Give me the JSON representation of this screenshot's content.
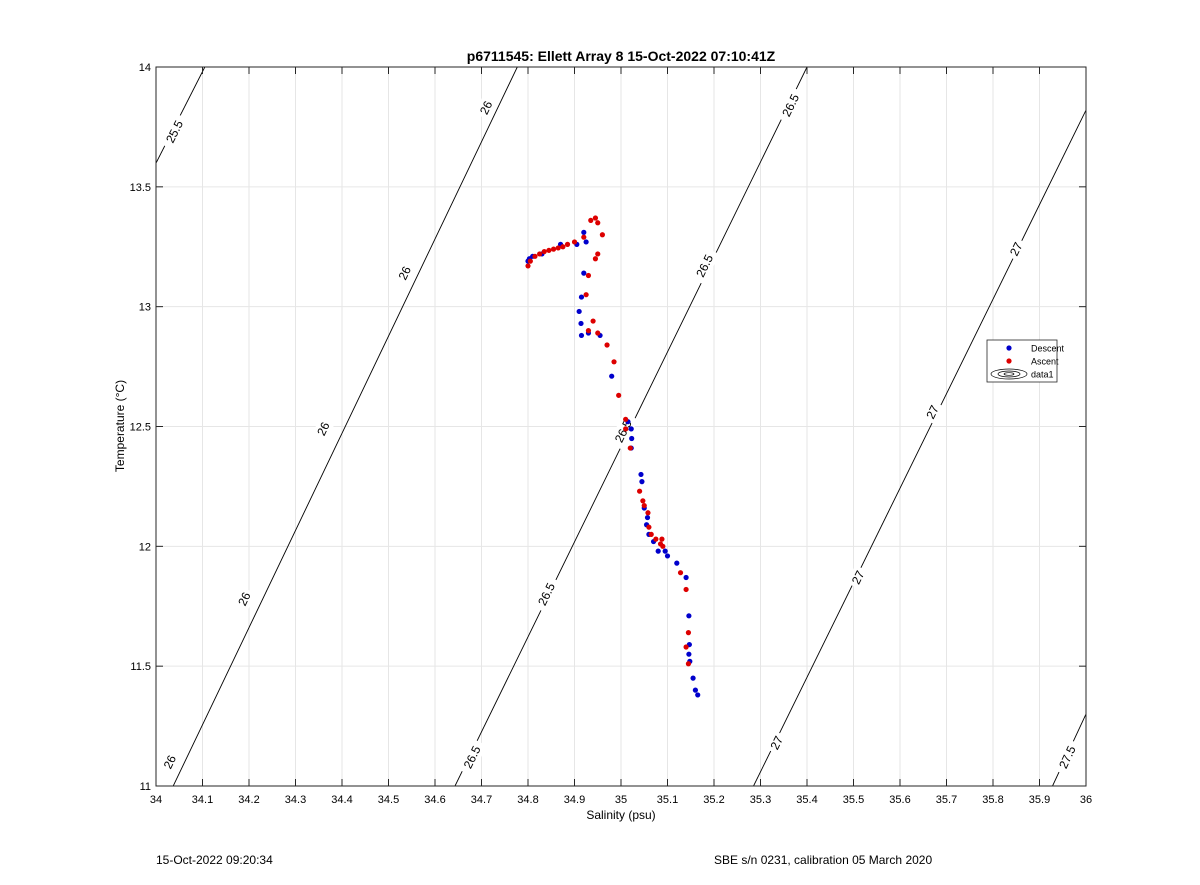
{
  "chart_data": {
    "type": "scatter",
    "title": "p6711545: Ellett Array 8 15-Oct-2022 07:10:41Z",
    "xlabel": "Salinity (psu)",
    "ylabel": "Temperature (°C)",
    "xlim": [
      34,
      36
    ],
    "ylim": [
      11,
      14
    ],
    "xticks": [
      34,
      34.1,
      34.2,
      34.3,
      34.4,
      34.5,
      34.6,
      34.7,
      34.8,
      34.9,
      35,
      35.1,
      35.2,
      35.3,
      35.4,
      35.5,
      35.6,
      35.7,
      35.8,
      35.9,
      36
    ],
    "xtick_labels": [
      "34",
      "34.1",
      "34.2",
      "34.3",
      "34.4",
      "34.5",
      "34.6",
      "34.7",
      "34.8",
      "34.9",
      "35",
      "35.1",
      "35.2",
      "35.3",
      "35.4",
      "35.5",
      "35.6",
      "35.7",
      "35.8",
      "35.9",
      "36"
    ],
    "yticks": [
      11,
      11.5,
      12,
      12.5,
      13,
      13.5,
      14
    ],
    "ytick_labels": [
      "11",
      "11.5",
      "12",
      "12.5",
      "13",
      "13.5",
      "14"
    ],
    "grid": true,
    "legend_position": "right",
    "legend": [
      {
        "label": "Descent",
        "type": "marker",
        "color": "#0000cc"
      },
      {
        "label": "Ascent",
        "type": "marker",
        "color": "#dd0000"
      },
      {
        "label": "data1",
        "type": "contour"
      }
    ],
    "series": [
      {
        "name": "Descent",
        "color": "#0000cc",
        "points": [
          [
            35.165,
            11.38
          ],
          [
            35.16,
            11.4
          ],
          [
            35.155,
            11.45
          ],
          [
            35.148,
            11.52
          ],
          [
            35.146,
            11.55
          ],
          [
            35.147,
            11.59
          ],
          [
            35.146,
            11.71
          ],
          [
            35.14,
            11.87
          ],
          [
            35.12,
            11.93
          ],
          [
            35.1,
            11.96
          ],
          [
            35.095,
            11.98
          ],
          [
            35.08,
            11.98
          ],
          [
            35.07,
            12.02
          ],
          [
            35.06,
            12.05
          ],
          [
            35.055,
            12.09
          ],
          [
            35.057,
            12.12
          ],
          [
            35.05,
            12.16
          ],
          [
            35.045,
            12.27
          ],
          [
            35.043,
            12.3
          ],
          [
            35.022,
            12.41
          ],
          [
            35.023,
            12.45
          ],
          [
            35.022,
            12.49
          ],
          [
            35.015,
            12.52
          ],
          [
            34.98,
            12.71
          ],
          [
            34.955,
            12.88
          ],
          [
            34.93,
            12.89
          ],
          [
            34.915,
            12.88
          ],
          [
            34.914,
            12.93
          ],
          [
            34.91,
            12.98
          ],
          [
            34.915,
            13.04
          ],
          [
            34.92,
            13.14
          ],
          [
            34.905,
            13.26
          ],
          [
            34.925,
            13.27
          ],
          [
            34.92,
            13.31
          ],
          [
            34.87,
            13.26
          ],
          [
            34.83,
            13.22
          ],
          [
            34.81,
            13.21
          ],
          [
            34.8,
            13.19
          ],
          [
            34.803,
            13.2
          ]
        ]
      },
      {
        "name": "Ascent",
        "color": "#dd0000",
        "points": [
          [
            35.145,
            11.51
          ],
          [
            35.14,
            11.58
          ],
          [
            35.145,
            11.64
          ],
          [
            35.14,
            11.82
          ],
          [
            35.128,
            11.89
          ],
          [
            35.09,
            12.0
          ],
          [
            35.088,
            12.03
          ],
          [
            35.085,
            12.01
          ],
          [
            35.075,
            12.03
          ],
          [
            35.065,
            12.05
          ],
          [
            35.06,
            12.08
          ],
          [
            35.058,
            12.14
          ],
          [
            35.05,
            12.17
          ],
          [
            35.047,
            12.19
          ],
          [
            35.04,
            12.23
          ],
          [
            35.02,
            12.41
          ],
          [
            35.01,
            12.49
          ],
          [
            35.01,
            12.53
          ],
          [
            34.995,
            12.63
          ],
          [
            34.985,
            12.77
          ],
          [
            34.97,
            12.84
          ],
          [
            34.95,
            12.89
          ],
          [
            34.93,
            12.9
          ],
          [
            34.94,
            12.94
          ],
          [
            34.925,
            13.05
          ],
          [
            34.93,
            13.13
          ],
          [
            34.945,
            13.2
          ],
          [
            34.95,
            13.22
          ],
          [
            34.96,
            13.3
          ],
          [
            34.95,
            13.35
          ],
          [
            34.945,
            13.37
          ],
          [
            34.935,
            13.36
          ],
          [
            34.92,
            13.29
          ],
          [
            34.9,
            13.27
          ],
          [
            34.885,
            13.26
          ],
          [
            34.875,
            13.25
          ],
          [
            34.865,
            13.245
          ],
          [
            34.855,
            13.24
          ],
          [
            34.845,
            13.235
          ],
          [
            34.835,
            13.23
          ],
          [
            34.825,
            13.22
          ],
          [
            34.815,
            13.21
          ],
          [
            34.805,
            13.19
          ],
          [
            34.8,
            13.17
          ]
        ]
      }
    ],
    "contours": [
      {
        "label": "25.5",
        "points": [
          [
            33.995,
            13.58
          ],
          [
            34.105,
            14.0
          ]
        ],
        "labels_at": [
          [
            34.04,
            13.73
          ]
        ]
      },
      {
        "label": "26",
        "points": [
          [
            34.0,
            10.85
          ],
          [
            34.777,
            14.0
          ]
        ],
        "labels_at": [
          [
            34.03,
            11.1
          ],
          [
            34.19,
            11.78
          ],
          [
            34.36,
            12.49
          ],
          [
            34.535,
            13.14
          ],
          [
            34.71,
            13.83
          ]
        ]
      },
      {
        "label": "26.5",
        "points": [
          [
            34.643,
            11.0
          ],
          [
            35.4,
            14.0
          ]
        ],
        "labels_at": [
          [
            34.68,
            11.12
          ],
          [
            34.84,
            11.8
          ],
          [
            35.005,
            12.48
          ],
          [
            35.18,
            13.17
          ],
          [
            35.365,
            13.84
          ]
        ]
      },
      {
        "label": "27",
        "points": [
          [
            35.285,
            11.0
          ],
          [
            36.0,
            13.82
          ]
        ],
        "labels_at": [
          [
            35.335,
            11.18
          ],
          [
            35.51,
            11.87
          ],
          [
            35.67,
            12.56
          ],
          [
            35.85,
            13.24
          ]
        ]
      },
      {
        "label": "27.5",
        "points": [
          [
            35.928,
            11.0
          ],
          [
            36.0,
            11.3
          ]
        ],
        "labels_at": [
          [
            35.96,
            11.12
          ]
        ]
      }
    ]
  },
  "footer": {
    "left": "15-Oct-2022 09:20:34",
    "right": "SBE s/n 0231, calibration 05 March 2020"
  }
}
